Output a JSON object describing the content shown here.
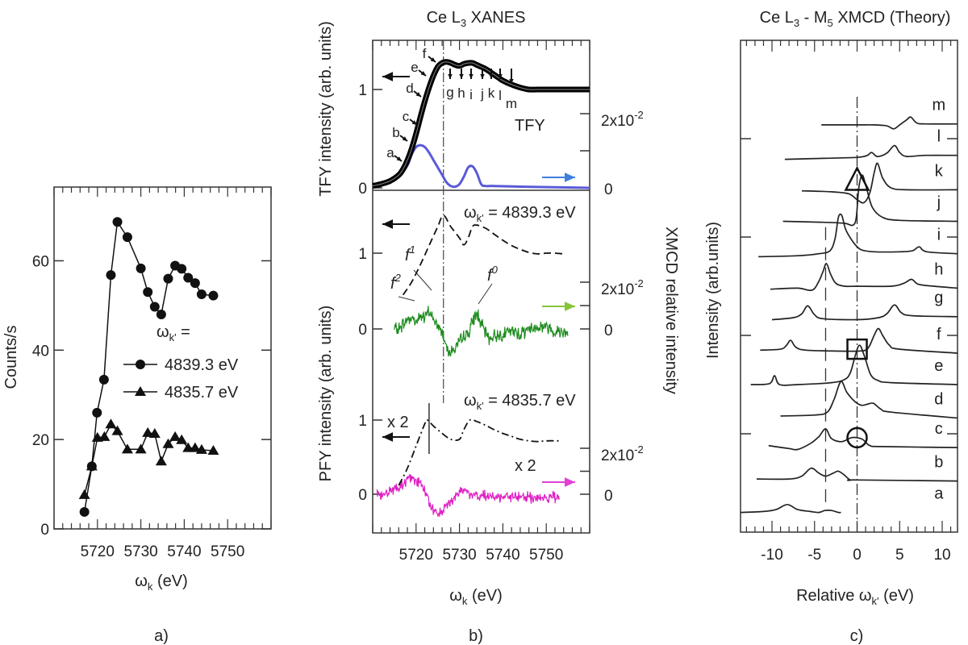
{
  "chart_data": [
    {
      "panel": "a)",
      "type": "line",
      "xlabel": {
        "symbol": "ω",
        "sub": "k",
        "rest": " (eV)"
      },
      "ylabel": "Counts/s",
      "xlim": [
        5710,
        5760
      ],
      "ylim": [
        0,
        76.5
      ],
      "xticks": [
        5720,
        5730,
        5740,
        5750
      ],
      "yticks": [
        0,
        20,
        40,
        60
      ],
      "legend_title": {
        "symbol": "ω",
        "sub": "k'",
        "rest": " ="
      },
      "legend_position": "center-right",
      "series": [
        {
          "name": "4839.3 eV",
          "marker": "circle",
          "x": [
            5717.0,
            5718.7,
            5719.9,
            5721.5,
            5723.1,
            5724.6,
            5726.9,
            5730.0,
            5731.6,
            5733.2,
            5734.7,
            5736.3,
            5737.9,
            5739.4,
            5740.9,
            5742.5,
            5744.0,
            5746.7
          ],
          "y": [
            3.8,
            14.0,
            26.0,
            33.4,
            56.8,
            68.7,
            65.3,
            58.3,
            53.0,
            49.7,
            48.0,
            56.0,
            58.9,
            58.2,
            56.2,
            55.0,
            52.5,
            52.2
          ]
        },
        {
          "name": "4835.7 eV",
          "marker": "triangle",
          "x": [
            5717.0,
            5718.7,
            5720.0,
            5721.6,
            5723.1,
            5724.6,
            5726.9,
            5730.0,
            5731.6,
            5733.2,
            5734.7,
            5736.3,
            5737.9,
            5739.4,
            5740.9,
            5742.5,
            5744.0,
            5746.7
          ],
          "y": [
            7.6,
            14.0,
            20.4,
            20.6,
            23.4,
            21.9,
            17.8,
            17.8,
            21.5,
            21.3,
            15.1,
            19.0,
            20.6,
            19.9,
            18.1,
            18.1,
            17.7,
            17.5
          ]
        }
      ]
    },
    {
      "panel": "b)",
      "type": "line",
      "title": {
        "pre": "Ce L",
        "sub": "3",
        "post": " XANES"
      },
      "xlabel": {
        "symbol": "ω",
        "sub": "k",
        "rest": " (eV)"
      },
      "ylabel_top": "TFY intensity (arb. units)",
      "ylabel_bottom": "PFY intensity (arb. units)",
      "ylabel_right": "XMCD relative intensity",
      "xlim": [
        5710,
        5760
      ],
      "xticks": [
        5720,
        5730,
        5740,
        5750
      ],
      "left_tick_labels": [
        "0",
        "1"
      ],
      "right_tick_labels": {
        "zero": "0",
        "base": "2x10",
        "exp": "-2"
      },
      "right_ticks": [
        0,
        0.01,
        0.02
      ],
      "vertical_line_x": 5726.3,
      "colors": {
        "tfy": "#000000",
        "xmcd_top": "#5a5ad8",
        "arrow_top": "#3f7fdc",
        "xmcd_middle": "#1e8c1e",
        "arrow_middle": "#86c43a",
        "xmcd_bottom": "#e020c4",
        "arrow_bottom": "#e040d4"
      },
      "top": {
        "curve_label": "TFY",
        "point_labels": [
          "a",
          "b",
          "c",
          "d",
          "e",
          "f",
          "g",
          "h",
          "i",
          "j",
          "k",
          "l",
          "m"
        ],
        "ylim_left": [
          0,
          1.48
        ],
        "tfy": {
          "x": [
            5710,
            5712,
            5714,
            5716,
            5717,
            5718,
            5719,
            5720,
            5721,
            5722,
            5723,
            5724,
            5725,
            5726,
            5727,
            5728,
            5729,
            5730,
            5731,
            5732,
            5733,
            5734,
            5735,
            5736,
            5737,
            5738,
            5739,
            5740,
            5742,
            5744,
            5746,
            5748,
            5750,
            5755,
            5760
          ],
          "y": [
            0.02,
            0.04,
            0.07,
            0.13,
            0.19,
            0.28,
            0.4,
            0.55,
            0.72,
            0.88,
            1.02,
            1.14,
            1.23,
            1.27,
            1.28,
            1.27,
            1.25,
            1.24,
            1.26,
            1.27,
            1.27,
            1.25,
            1.23,
            1.21,
            1.18,
            1.15,
            1.12,
            1.09,
            1.05,
            1.02,
            1.0,
            1.0,
            1.0,
            1.0,
            1.0
          ]
        },
        "xmcd": {
          "x": [
            5710,
            5714,
            5716,
            5718,
            5719,
            5720,
            5721,
            5722,
            5723,
            5724,
            5725,
            5726,
            5727,
            5728,
            5729,
            5730,
            5731,
            5732,
            5733,
            5734,
            5735,
            5736,
            5738,
            5745,
            5760
          ],
          "y": [
            0.001,
            0.0015,
            0.003,
            0.006,
            0.009,
            0.011,
            0.0115,
            0.011,
            0.0095,
            0.0075,
            0.0055,
            0.0035,
            0.0015,
            0.0005,
            0.0003,
            0.001,
            0.003,
            0.0055,
            0.0058,
            0.004,
            0.001,
            0.0005,
            0.0005,
            0.0003,
            0
          ]
        }
      },
      "middle": {
        "label": {
          "symbol": "ω",
          "sub": "k'",
          "rest": " = 4839.3 eV"
        },
        "annotations": [
          {
            "base": "f",
            "sup": "2"
          },
          {
            "base": "f",
            "sup": "1"
          },
          {
            "base": "f",
            "sup": "0"
          }
        ],
        "pfy": {
          "x": [
            5717,
            5719,
            5721,
            5723,
            5725,
            5726.3,
            5728,
            5730,
            5731,
            5732,
            5733,
            5734,
            5736,
            5738,
            5740,
            5742,
            5744,
            5746,
            5748,
            5750,
            5752,
            5754
          ],
          "y": [
            0.45,
            0.62,
            0.85,
            1.1,
            1.35,
            1.5,
            1.35,
            1.2,
            1.11,
            1.2,
            1.35,
            1.37,
            1.33,
            1.25,
            1.17,
            1.1,
            1.05,
            1.01,
            0.99,
            1.0,
            1.0,
            0.99
          ]
        },
        "xmcd": {
          "x": [
            5715,
            5716,
            5717,
            5718,
            5719,
            5720,
            5721,
            5722,
            5723,
            5724,
            5725,
            5726,
            5727,
            5728,
            5729,
            5730,
            5731,
            5732,
            5733,
            5734,
            5735,
            5736,
            5737,
            5738,
            5740,
            5742,
            5744,
            5746,
            5748,
            5750,
            5752,
            5755
          ],
          "y": [
            0,
            0,
            0.002,
            0.004,
            0.005,
            0.003,
            0.006,
            0.004,
            0.008,
            0.004,
            0.001,
            -0.001,
            -0.007,
            -0.01,
            -0.008,
            -0.006,
            -0.003,
            -0.002,
            0.003,
            0.007,
            0.002,
            -0.002,
            -0.004,
            -0.003,
            -0.002,
            -0.001,
            -0.002,
            0,
            0.001,
            0.001,
            -0.001,
            -0.001
          ]
        }
      },
      "bottom": {
        "label": {
          "symbol": "ω",
          "sub": "k'",
          "rest": " = 4835.7 eV"
        },
        "scale_labels": [
          "x 2",
          "x 2"
        ],
        "marker_line_x": 5723,
        "pfy": {
          "x": [
            5716,
            5718,
            5720,
            5722,
            5722.6,
            5724,
            5726,
            5728,
            5730,
            5731,
            5732.4,
            5734,
            5736,
            5738,
            5740,
            5742,
            5744,
            5746,
            5748,
            5750,
            5753
          ],
          "y": [
            0.12,
            0.35,
            0.65,
            0.95,
            1.0,
            0.92,
            0.82,
            0.74,
            0.74,
            0.87,
            1.0,
            0.98,
            0.93,
            0.87,
            0.82,
            0.78,
            0.74,
            0.72,
            0.71,
            0.72,
            0.72
          ]
        },
        "xmcd": {
          "x": [
            5711,
            5713,
            5715,
            5717,
            5718,
            5719,
            5720,
            5721,
            5722,
            5723,
            5724,
            5725,
            5726,
            5727,
            5728,
            5729,
            5730,
            5731,
            5732,
            5734,
            5736,
            5740,
            5745,
            5750,
            5753
          ],
          "y": [
            0,
            0.001,
            0.002,
            0.004,
            0.006,
            0.007,
            0.006,
            0.005,
            0.001,
            -0.004,
            -0.007,
            -0.008,
            -0.007,
            -0.005,
            -0.003,
            -0.001,
            0.002,
            0.002,
            0.001,
            -0.001,
            -0.001,
            -0.001,
            -0.001,
            -0.002,
            -0.001
          ]
        }
      }
    },
    {
      "panel": "c)",
      "type": "line",
      "title": {
        "pre": "Ce L",
        "sub": "3",
        "mid": " - M",
        "sub2": "5",
        "post": " XMCD (Theory)"
      },
      "xlabel": {
        "pre": "Relative ω",
        "sub": "k'",
        "rest": " (eV)"
      },
      "ylabel": "Intensity (arb.units)",
      "xlim": [
        -13.7,
        11.8
      ],
      "ylim": [
        0,
        5
      ],
      "xticks": [
        -10,
        -5,
        0,
        5,
        10
      ],
      "yticks": [
        1,
        2,
        3,
        4
      ],
      "reference_lines_x": [
        0,
        -3.7
      ],
      "markers": [
        {
          "shape": "triangle",
          "x": 0,
          "y": 3.57
        },
        {
          "shape": "square",
          "x": 0,
          "y": 1.86
        },
        {
          "shape": "circle",
          "x": 0,
          "y": 0.96
        }
      ],
      "spectra": [
        {
          "label": "a",
          "x": [
            -13.7,
            -11,
            -9.5,
            -8.2,
            -7,
            -5.5,
            -4.5,
            -3.8,
            -3,
            -2.2,
            -1.9
          ],
          "y": [
            0.2,
            0.21,
            0.23,
            0.28,
            0.23,
            0.21,
            0.2,
            0.22,
            0.22,
            0.2,
            0.2
          ]
        },
        {
          "label": "b",
          "x": [
            -11.8,
            -8,
            -6.5,
            -5.4,
            -4.5,
            -3.7,
            -2.8,
            -2.2,
            -1.5,
            -0.8,
            0,
            11.8
          ],
          "y": [
            0.54,
            0.54,
            0.57,
            0.65,
            0.6,
            0.57,
            0.6,
            0.62,
            0.58,
            0.53,
            0.53,
            0.52
          ]
        },
        {
          "label": "c",
          "x": [
            -10.4,
            -8,
            -7,
            -5.5,
            -4.5,
            -3.7,
            -3,
            -1.8,
            -0.7,
            0,
            0.7,
            1.5,
            3,
            11.8
          ],
          "y": [
            0.88,
            0.85,
            0.84,
            0.9,
            0.97,
            1.05,
            0.95,
            0.92,
            0.96,
            0.96,
            0.94,
            0.88,
            0.87,
            0.86
          ]
        },
        {
          "label": "d",
          "x": [
            -9,
            -5,
            -3.5,
            -2.7,
            -1.9,
            -1.2,
            -0.3,
            0.5,
            1.2,
            1.9,
            2.8,
            4,
            11.8
          ],
          "y": [
            1.18,
            1.19,
            1.22,
            1.35,
            1.53,
            1.42,
            1.33,
            1.29,
            1.3,
            1.31,
            1.25,
            1.22,
            1.16
          ]
        },
        {
          "label": "e",
          "x": [
            -12.5,
            -10.3,
            -9.7,
            -9.1,
            -7,
            -3,
            -1.5,
            -0.8,
            -0.2,
            0.3,
            0.9,
            1.6,
            2.5,
            4,
            11.8
          ],
          "y": [
            1.5,
            1.51,
            1.59,
            1.5,
            1.5,
            1.52,
            1.55,
            1.62,
            1.8,
            1.9,
            1.78,
            1.6,
            1.54,
            1.52,
            1.5
          ]
        },
        {
          "label": "f",
          "x": [
            -11.4,
            -9,
            -8.3,
            -7.8,
            -7.2,
            -6,
            -2,
            0,
            1,
            1.5,
            2,
            2.5,
            3,
            3.8,
            5,
            11.8
          ],
          "y": [
            1.85,
            1.86,
            1.9,
            1.95,
            1.88,
            1.85,
            1.84,
            1.84,
            1.85,
            1.9,
            2.0,
            2.07,
            2.0,
            1.9,
            1.86,
            1.82
          ]
        },
        {
          "label": "g",
          "x": [
            -10,
            -7.5,
            -6.5,
            -5.8,
            -5,
            -4,
            0,
            2.5,
            3.5,
            4.4,
            5.2,
            6.5,
            11.8
          ],
          "y": [
            2.16,
            2.18,
            2.22,
            2.3,
            2.21,
            2.17,
            2.16,
            2.18,
            2.22,
            2.31,
            2.23,
            2.2,
            2.19
          ]
        },
        {
          "label": "h",
          "x": [
            -10.2,
            -7,
            -5.3,
            -4.5,
            -4,
            -3.6,
            -3.1,
            -2.5,
            -1.5,
            0,
            4,
            5.5,
            6.4,
            7.2,
            9,
            11.8
          ],
          "y": [
            2.47,
            2.48,
            2.46,
            2.55,
            2.65,
            2.73,
            2.62,
            2.53,
            2.5,
            2.5,
            2.5,
            2.53,
            2.57,
            2.52,
            2.5,
            2.48
          ]
        },
        {
          "label": "i",
          "x": [
            -11.6,
            -7,
            -4.5,
            -3.2,
            -2.6,
            -2.2,
            -1.8,
            -1.4,
            -1,
            -0.3,
            0.5,
            2,
            5,
            6.5,
            7.3,
            8.2,
            11.8
          ],
          "y": [
            2.8,
            2.81,
            2.83,
            2.86,
            2.98,
            3.2,
            3.22,
            3.09,
            3.02,
            2.93,
            2.87,
            2.85,
            2.85,
            2.86,
            2.9,
            2.85,
            2.83
          ]
        },
        {
          "label": "j",
          "x": [
            -8.7,
            -4,
            -1.5,
            -0.5,
            -0.1,
            0.2,
            0.6,
            1.1,
            1.8,
            3,
            5,
            11.8
          ],
          "y": [
            3.16,
            3.15,
            3.14,
            3.12,
            3.2,
            3.5,
            3.63,
            3.5,
            3.3,
            3.2,
            3.17,
            3.16
          ]
        },
        {
          "label": "k",
          "x": [
            -6.5,
            -3,
            -1,
            0,
            0.8,
            1.5,
            2,
            2.4,
            3,
            4,
            6,
            11.8
          ],
          "y": [
            3.47,
            3.46,
            3.44,
            3.38,
            3.35,
            3.45,
            3.65,
            3.75,
            3.6,
            3.5,
            3.48,
            3.48
          ]
        },
        {
          "label": "l",
          "x": [
            -8.5,
            -4,
            0,
            1.2,
            1.7,
            2.3,
            3,
            3.6,
            4.4,
            5,
            5.8,
            8,
            11.8
          ],
          "y": [
            3.79,
            3.8,
            3.81,
            3.83,
            3.86,
            3.82,
            3.83,
            3.86,
            3.93,
            3.86,
            3.82,
            3.83,
            3.83
          ]
        },
        {
          "label": "m",
          "x": [
            -4.2,
            0,
            2,
            3.5,
            4.3,
            5,
            5.8,
            6.3,
            7,
            8,
            11.8
          ],
          "y": [
            4.14,
            4.14,
            4.14,
            4.13,
            4.1,
            4.14,
            4.19,
            4.22,
            4.16,
            4.15,
            4.15
          ]
        }
      ]
    }
  ]
}
